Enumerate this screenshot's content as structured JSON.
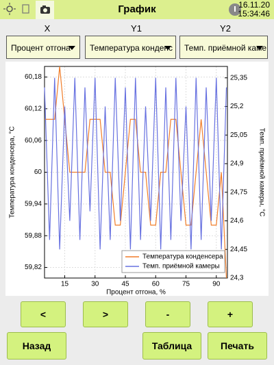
{
  "header": {
    "title": "График",
    "date": "16.11.20",
    "time": "15:34:46"
  },
  "selectors": [
    {
      "label": "X",
      "value": "Процент отгона"
    },
    {
      "label": "Y1",
      "value": "Температура конденс"
    },
    {
      "label": "Y2",
      "value": "Темп. приёмной каме"
    }
  ],
  "chart_data": {
    "type": "line",
    "x_label": "Процент отгона, %",
    "y_label": "Температура конденсера, °С",
    "y2_label": "Темп. приёмной камеры, °С",
    "x": [
      5,
      7.5,
      10,
      12.5,
      15,
      17.5,
      20,
      22.5,
      25,
      27.5,
      30,
      32.5,
      35,
      37.5,
      40,
      42.5,
      45,
      47.5,
      50,
      52.5,
      55,
      57.5,
      60,
      62.5,
      65,
      67.5,
      70,
      72.5,
      75,
      77.5,
      80,
      82.5,
      85,
      87.5,
      90,
      92.5,
      95
    ],
    "series": [
      {
        "name": "Температура конденсера",
        "color": "#f07c28",
        "values": [
          60.1,
          60.1,
          60.1,
          60.2,
          60.1,
          60,
          60,
          60,
          60,
          60.1,
          60.1,
          60.1,
          60,
          60,
          59.9,
          59.9,
          60,
          60.1,
          60.1,
          60,
          60,
          59.9,
          59.9,
          60,
          60,
          60.1,
          60.1,
          60,
          59.9,
          59.9,
          60,
          60.1,
          60,
          59.9,
          59.9,
          60,
          59.8
        ]
      },
      {
        "name": "Темп. приёмной камеры",
        "color": "#6670e0",
        "axis": "y2",
        "values": [
          25.3,
          24.5,
          25.35,
          24.45,
          25.2,
          24.6,
          25.35,
          24.5,
          25.3,
          24.65,
          25.35,
          24.45,
          25.2,
          24.5,
          25.35,
          24.6,
          25.3,
          24.45,
          25.35,
          24.5,
          25.2,
          24.6,
          25.35,
          24.45,
          25.3,
          24.5,
          25.35,
          24.6,
          25.2,
          24.45,
          25.35,
          24.5,
          25.3,
          24.6,
          25.35,
          24.45,
          25.3
        ]
      }
    ],
    "xlim": [
      5,
      95.5
    ],
    "xticks": [
      15,
      30,
      45,
      60,
      75,
      90
    ],
    "ylim": [
      59.8,
      60.2
    ],
    "yticks": [
      {
        "value": 59.82,
        "label": "59,82"
      },
      {
        "value": 59.88,
        "label": "59,88"
      },
      {
        "value": 59.94,
        "label": "59,94"
      },
      60,
      {
        "value": 60.06,
        "label": "60,06"
      },
      {
        "value": 60.12,
        "label": "60,12"
      },
      {
        "value": 60.18,
        "label": "60,18"
      }
    ],
    "y2lim": [
      24.3,
      25.41
    ],
    "y2ticks": [
      {
        "value": 24.3,
        "label": "24,3"
      },
      {
        "value": 24.45,
        "label": "24,45"
      },
      {
        "value": 24.6,
        "label": "24,6"
      },
      {
        "value": 24.75,
        "label": "24,75"
      },
      {
        "value": 24.9,
        "label": "24,9"
      },
      {
        "value": 25.05,
        "label": "25,05"
      },
      {
        "value": 25.2,
        "label": "25,2"
      },
      {
        "value": 25.35,
        "label": "25,35"
      }
    ],
    "grid": true,
    "legend": "lower right"
  },
  "buttons": [
    "<",
    ">",
    "-",
    "+",
    "Назад",
    "Таблица",
    "Печать"
  ]
}
